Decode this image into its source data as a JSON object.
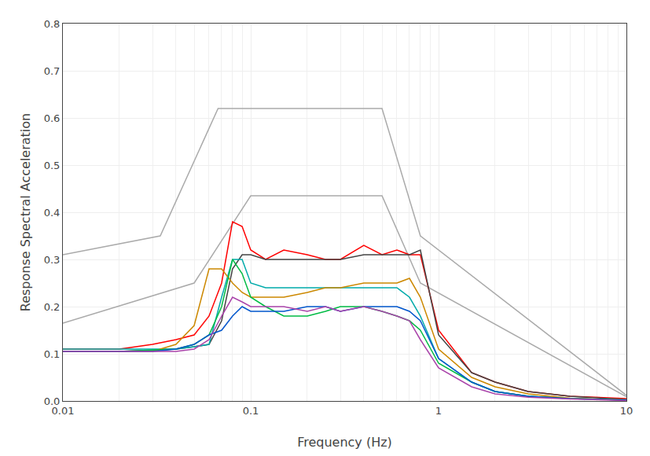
{
  "chart_data": {
    "type": "line",
    "xlabel": "Frequency (Hz)",
    "ylabel": "Response Spectral Acceleration",
    "log": "x",
    "grid": true,
    "xlim": [
      0.01,
      10
    ],
    "ylim": [
      0,
      0.8
    ],
    "xticks": [
      0.01,
      0.1,
      1,
      10
    ],
    "yticks": [
      {
        "value": 0,
        "label": "0.0"
      },
      0.1,
      0.2,
      0.3,
      0.4,
      0.5,
      0.6,
      0.7,
      0.8
    ],
    "series": [
      {
        "color": "#aaaaaa",
        "x": [
          0.01,
          0.033,
          0.067,
          0.5,
          0.8,
          10
        ],
        "values": [
          0.31,
          0.35,
          0.62,
          0.62,
          0.35,
          0.012
        ]
      },
      {
        "color": "#aaaaaa",
        "x": [
          0.01,
          0.05,
          0.1,
          0.5,
          0.8,
          10
        ],
        "values": [
          0.165,
          0.25,
          0.435,
          0.435,
          0.25,
          0.009
        ]
      },
      {
        "color": "#ff0000",
        "x": [
          0.01,
          0.02,
          0.03,
          0.04,
          0.05,
          0.06,
          0.07,
          0.08,
          0.09,
          0.1,
          0.12,
          0.15,
          0.2,
          0.25,
          0.3,
          0.4,
          0.5,
          0.6,
          0.7,
          0.8,
          1.0,
          1.5,
          2.0,
          3.0,
          5.0,
          10.0
        ],
        "values": [
          0.11,
          0.11,
          0.12,
          0.13,
          0.14,
          0.18,
          0.25,
          0.38,
          0.37,
          0.32,
          0.3,
          0.32,
          0.31,
          0.3,
          0.3,
          0.33,
          0.31,
          0.32,
          0.31,
          0.31,
          0.15,
          0.06,
          0.04,
          0.02,
          0.01,
          0.005
        ]
      },
      {
        "color": "#444444",
        "x": [
          0.01,
          0.02,
          0.03,
          0.04,
          0.05,
          0.06,
          0.07,
          0.08,
          0.09,
          0.1,
          0.12,
          0.15,
          0.2,
          0.25,
          0.3,
          0.4,
          0.5,
          0.6,
          0.7,
          0.8,
          1.0,
          1.5,
          2.0,
          3.0,
          5.0,
          10.0
        ],
        "values": [
          0.105,
          0.105,
          0.108,
          0.11,
          0.115,
          0.12,
          0.17,
          0.28,
          0.31,
          0.31,
          0.3,
          0.3,
          0.3,
          0.3,
          0.3,
          0.31,
          0.31,
          0.31,
          0.31,
          0.32,
          0.14,
          0.06,
          0.04,
          0.02,
          0.01,
          0.003
        ]
      },
      {
        "color": "#00aaaa",
        "x": [
          0.01,
          0.02,
          0.03,
          0.04,
          0.05,
          0.06,
          0.07,
          0.08,
          0.09,
          0.1,
          0.12,
          0.15,
          0.2,
          0.25,
          0.3,
          0.4,
          0.5,
          0.6,
          0.7,
          0.8,
          1.0,
          1.5,
          2.0,
          3.0,
          5.0,
          10.0
        ],
        "values": [
          0.11,
          0.11,
          0.11,
          0.11,
          0.115,
          0.12,
          0.22,
          0.3,
          0.3,
          0.25,
          0.24,
          0.24,
          0.24,
          0.24,
          0.24,
          0.24,
          0.24,
          0.24,
          0.22,
          0.18,
          0.09,
          0.04,
          0.02,
          0.01,
          0.005,
          0.002
        ]
      },
      {
        "color": "#cc8800",
        "x": [
          0.01,
          0.02,
          0.03,
          0.04,
          0.05,
          0.06,
          0.07,
          0.08,
          0.09,
          0.1,
          0.12,
          0.15,
          0.2,
          0.25,
          0.3,
          0.4,
          0.5,
          0.6,
          0.7,
          0.8,
          1.0,
          1.5,
          2.0,
          3.0,
          5.0,
          10.0
        ],
        "values": [
          0.105,
          0.105,
          0.105,
          0.12,
          0.16,
          0.28,
          0.28,
          0.25,
          0.23,
          0.22,
          0.22,
          0.22,
          0.23,
          0.24,
          0.24,
          0.25,
          0.25,
          0.25,
          0.26,
          0.22,
          0.11,
          0.05,
          0.03,
          0.015,
          0.006,
          0.002
        ]
      },
      {
        "color": "#00bb44",
        "x": [
          0.01,
          0.02,
          0.03,
          0.04,
          0.05,
          0.06,
          0.07,
          0.08,
          0.09,
          0.1,
          0.12,
          0.15,
          0.2,
          0.25,
          0.3,
          0.4,
          0.5,
          0.6,
          0.7,
          0.8,
          1.0,
          1.5,
          2.0,
          3.0,
          5.0,
          10.0
        ],
        "values": [
          0.105,
          0.105,
          0.108,
          0.11,
          0.12,
          0.14,
          0.2,
          0.3,
          0.27,
          0.22,
          0.2,
          0.18,
          0.18,
          0.19,
          0.2,
          0.2,
          0.19,
          0.18,
          0.17,
          0.15,
          0.08,
          0.04,
          0.02,
          0.01,
          0.005,
          0.002
        ]
      },
      {
        "color": "#0055cc",
        "x": [
          0.01,
          0.02,
          0.03,
          0.04,
          0.05,
          0.06,
          0.07,
          0.08,
          0.09,
          0.1,
          0.12,
          0.15,
          0.2,
          0.25,
          0.3,
          0.4,
          0.5,
          0.6,
          0.7,
          0.8,
          1.0,
          1.5,
          2.0,
          3.0,
          5.0,
          10.0
        ],
        "values": [
          0.105,
          0.105,
          0.105,
          0.11,
          0.12,
          0.14,
          0.15,
          0.18,
          0.2,
          0.19,
          0.19,
          0.19,
          0.2,
          0.2,
          0.19,
          0.2,
          0.2,
          0.2,
          0.19,
          0.17,
          0.09,
          0.04,
          0.02,
          0.01,
          0.005,
          0.002
        ]
      },
      {
        "color": "#aa44aa",
        "x": [
          0.01,
          0.02,
          0.03,
          0.04,
          0.05,
          0.06,
          0.07,
          0.08,
          0.09,
          0.1,
          0.12,
          0.15,
          0.2,
          0.25,
          0.3,
          0.4,
          0.5,
          0.6,
          0.7,
          0.8,
          1.0,
          1.5,
          2.0,
          3.0,
          5.0,
          10.0
        ],
        "values": [
          0.105,
          0.105,
          0.105,
          0.105,
          0.11,
          0.13,
          0.18,
          0.22,
          0.21,
          0.2,
          0.2,
          0.2,
          0.19,
          0.2,
          0.19,
          0.2,
          0.19,
          0.18,
          0.17,
          0.13,
          0.07,
          0.03,
          0.015,
          0.008,
          0.004,
          0.001
        ]
      }
    ]
  }
}
